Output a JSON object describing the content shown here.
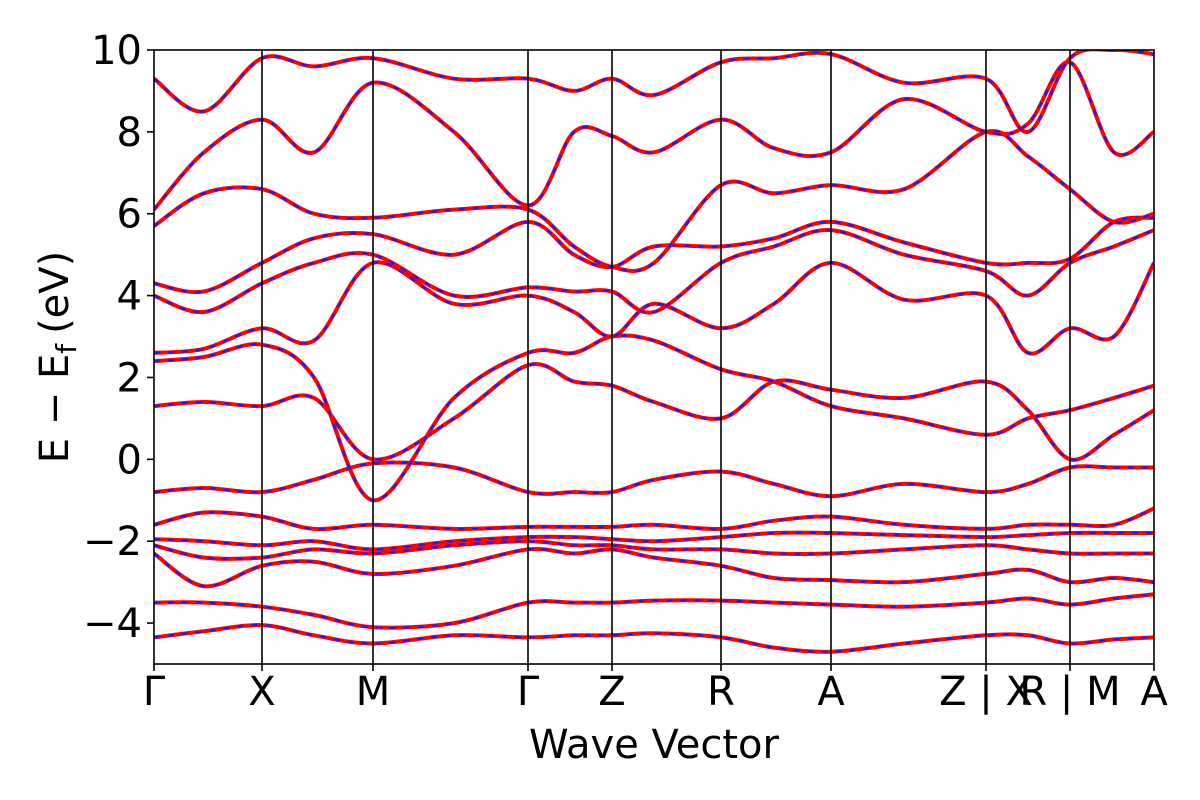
{
  "chart_data": {
    "type": "line",
    "title": "",
    "xlabel": "Wave Vector",
    "ylabel": "E − E",
    "ylabel_sub": "f",
    "ylabel_unit": "(eV)",
    "ylim": [
      -5,
      10
    ],
    "yticks": [
      {
        "value": 10,
        "label": "10"
      },
      {
        "value": 8,
        "label": "8"
      },
      {
        "value": 6,
        "label": "6"
      },
      {
        "value": 4,
        "label": "4"
      },
      {
        "value": 2,
        "label": "2"
      },
      {
        "value": 0,
        "label": "0"
      },
      {
        "value": -2,
        "label": "−2"
      },
      {
        "value": -4,
        "label": "−4"
      }
    ],
    "kpath": [
      {
        "label": "Γ",
        "pos": 0.0
      },
      {
        "label": "X",
        "pos": 0.108
      },
      {
        "label": "M",
        "pos": 0.219
      },
      {
        "label": "Γ",
        "pos": 0.374
      },
      {
        "label": "Z",
        "pos": 0.458
      },
      {
        "label": "R",
        "pos": 0.567
      },
      {
        "label": "A",
        "pos": 0.677
      },
      {
        "label": "Z | X",
        "pos": 0.832
      },
      {
        "label": "R | M",
        "pos": 0.916
      },
      {
        "label": "A",
        "pos": 1.0
      }
    ],
    "grid": false,
    "colors": {
      "band_solid": "#ff0000",
      "band_dashed": "#1a1aff"
    },
    "bands": [
      [
        [
          0,
          -4.35
        ],
        [
          0.05,
          -4.2
        ],
        [
          0.108,
          -4.05
        ],
        [
          0.16,
          -4.3
        ],
        [
          0.219,
          -4.5
        ],
        [
          0.3,
          -4.3
        ],
        [
          0.374,
          -4.35
        ],
        [
          0.42,
          -4.3
        ],
        [
          0.458,
          -4.3
        ],
        [
          0.5,
          -4.25
        ],
        [
          0.567,
          -4.35
        ],
        [
          0.62,
          -4.6
        ],
        [
          0.677,
          -4.7
        ],
        [
          0.75,
          -4.5
        ],
        [
          0.832,
          -4.3
        ],
        [
          0.874,
          -4.3
        ],
        [
          0.916,
          -4.5
        ],
        [
          0.96,
          -4.4
        ],
        [
          1.0,
          -4.35
        ]
      ],
      [
        [
          0,
          -3.5
        ],
        [
          0.05,
          -3.5
        ],
        [
          0.108,
          -3.6
        ],
        [
          0.16,
          -3.8
        ],
        [
          0.219,
          -4.1
        ],
        [
          0.3,
          -4.0
        ],
        [
          0.374,
          -3.5
        ],
        [
          0.42,
          -3.5
        ],
        [
          0.458,
          -3.5
        ],
        [
          0.5,
          -3.45
        ],
        [
          0.567,
          -3.45
        ],
        [
          0.62,
          -3.5
        ],
        [
          0.677,
          -3.55
        ],
        [
          0.75,
          -3.6
        ],
        [
          0.832,
          -3.5
        ],
        [
          0.874,
          -3.4
        ],
        [
          0.916,
          -3.55
        ],
        [
          0.96,
          -3.4
        ],
        [
          1.0,
          -3.3
        ]
      ],
      [
        [
          0,
          -2.3
        ],
        [
          0.05,
          -3.1
        ],
        [
          0.108,
          -2.6
        ],
        [
          0.16,
          -2.5
        ],
        [
          0.219,
          -2.8
        ],
        [
          0.3,
          -2.6
        ],
        [
          0.374,
          -2.2
        ],
        [
          0.42,
          -2.3
        ],
        [
          0.458,
          -2.2
        ],
        [
          0.5,
          -2.4
        ],
        [
          0.567,
          -2.6
        ],
        [
          0.62,
          -2.9
        ],
        [
          0.677,
          -2.95
        ],
        [
          0.75,
          -3.0
        ],
        [
          0.832,
          -2.8
        ],
        [
          0.874,
          -2.7
        ],
        [
          0.916,
          -3.0
        ],
        [
          0.96,
          -2.9
        ],
        [
          1.0,
          -3.0
        ]
      ],
      [
        [
          0,
          -2.1
        ],
        [
          0.05,
          -2.4
        ],
        [
          0.108,
          -2.4
        ],
        [
          0.16,
          -2.2
        ],
        [
          0.219,
          -2.3
        ],
        [
          0.3,
          -2.1
        ],
        [
          0.374,
          -2.0
        ],
        [
          0.42,
          -2.1
        ],
        [
          0.458,
          -2.1
        ],
        [
          0.5,
          -2.2
        ],
        [
          0.567,
          -2.2
        ],
        [
          0.62,
          -2.3
        ],
        [
          0.677,
          -2.3
        ],
        [
          0.75,
          -2.2
        ],
        [
          0.832,
          -2.1
        ],
        [
          0.874,
          -2.2
        ],
        [
          0.916,
          -2.3
        ],
        [
          0.96,
          -2.3
        ],
        [
          1.0,
          -2.3
        ]
      ],
      [
        [
          0,
          -1.95
        ],
        [
          0.05,
          -2.0
        ],
        [
          0.108,
          -2.1
        ],
        [
          0.16,
          -2.0
        ],
        [
          0.219,
          -2.2
        ],
        [
          0.3,
          -2.0
        ],
        [
          0.374,
          -1.9
        ],
        [
          0.42,
          -1.9
        ],
        [
          0.458,
          -1.95
        ],
        [
          0.5,
          -2.0
        ],
        [
          0.567,
          -1.9
        ],
        [
          0.62,
          -1.8
        ],
        [
          0.677,
          -1.8
        ],
        [
          0.75,
          -1.85
        ],
        [
          0.832,
          -1.9
        ],
        [
          0.874,
          -1.85
        ],
        [
          0.916,
          -1.8
        ],
        [
          0.96,
          -1.8
        ],
        [
          1.0,
          -1.8
        ]
      ],
      [
        [
          0,
          -1.6
        ],
        [
          0.05,
          -1.3
        ],
        [
          0.108,
          -1.4
        ],
        [
          0.16,
          -1.7
        ],
        [
          0.219,
          -1.6
        ],
        [
          0.3,
          -1.7
        ],
        [
          0.374,
          -1.65
        ],
        [
          0.42,
          -1.65
        ],
        [
          0.458,
          -1.65
        ],
        [
          0.5,
          -1.6
        ],
        [
          0.567,
          -1.7
        ],
        [
          0.62,
          -1.5
        ],
        [
          0.677,
          -1.4
        ],
        [
          0.75,
          -1.6
        ],
        [
          0.832,
          -1.7
        ],
        [
          0.874,
          -1.6
        ],
        [
          0.916,
          -1.6
        ],
        [
          0.96,
          -1.6
        ],
        [
          1.0,
          -1.2
        ]
      ],
      [
        [
          0,
          -0.8
        ],
        [
          0.05,
          -0.7
        ],
        [
          0.108,
          -0.8
        ],
        [
          0.16,
          -0.5
        ],
        [
          0.219,
          -0.1
        ],
        [
          0.3,
          -0.2
        ],
        [
          0.374,
          -0.8
        ],
        [
          0.42,
          -0.8
        ],
        [
          0.458,
          -0.8
        ],
        [
          0.5,
          -0.5
        ],
        [
          0.567,
          -0.3
        ],
        [
          0.62,
          -0.6
        ],
        [
          0.677,
          -0.9
        ],
        [
          0.75,
          -0.6
        ],
        [
          0.832,
          -0.8
        ],
        [
          0.874,
          -0.6
        ],
        [
          0.916,
          -0.2
        ],
        [
          0.96,
          -0.2
        ],
        [
          1.0,
          -0.2
        ]
      ],
      [
        [
          0,
          1.3
        ],
        [
          0.05,
          1.4
        ],
        [
          0.108,
          1.3
        ],
        [
          0.16,
          1.5
        ],
        [
          0.219,
          0.0
        ],
        [
          0.3,
          1.0
        ],
        [
          0.374,
          2.3
        ],
        [
          0.42,
          1.9
        ],
        [
          0.458,
          1.8
        ],
        [
          0.5,
          1.4
        ],
        [
          0.567,
          1.0
        ],
        [
          0.62,
          1.9
        ],
        [
          0.677,
          1.7
        ],
        [
          0.75,
          1.5
        ],
        [
          0.832,
          1.9
        ],
        [
          0.874,
          1.2
        ],
        [
          0.916,
          0.0
        ],
        [
          0.96,
          0.6
        ],
        [
          1.0,
          1.2
        ]
      ],
      [
        [
          0,
          2.4
        ],
        [
          0.05,
          2.5
        ],
        [
          0.108,
          2.8
        ],
        [
          0.16,
          2.0
        ],
        [
          0.219,
          -1.0
        ],
        [
          0.3,
          1.5
        ],
        [
          0.374,
          2.6
        ],
        [
          0.42,
          2.6
        ],
        [
          0.458,
          3.0
        ],
        [
          0.5,
          2.9
        ],
        [
          0.567,
          2.2
        ],
        [
          0.62,
          1.9
        ],
        [
          0.677,
          1.3
        ],
        [
          0.75,
          1.0
        ],
        [
          0.832,
          0.6
        ],
        [
          0.874,
          1.0
        ],
        [
          0.916,
          1.2
        ],
        [
          0.96,
          1.5
        ],
        [
          1.0,
          1.8
        ]
      ],
      [
        [
          0,
          2.6
        ],
        [
          0.05,
          2.7
        ],
        [
          0.108,
          3.2
        ],
        [
          0.16,
          2.9
        ],
        [
          0.219,
          4.8
        ],
        [
          0.3,
          3.8
        ],
        [
          0.374,
          4.0
        ],
        [
          0.42,
          3.6
        ],
        [
          0.458,
          3.0
        ],
        [
          0.5,
          3.8
        ],
        [
          0.567,
          3.2
        ],
        [
          0.62,
          3.8
        ],
        [
          0.677,
          4.8
        ],
        [
          0.75,
          3.9
        ],
        [
          0.832,
          4.0
        ],
        [
          0.874,
          2.6
        ],
        [
          0.916,
          3.2
        ],
        [
          0.96,
          3.0
        ],
        [
          1.0,
          4.8
        ]
      ],
      [
        [
          0,
          4.0
        ],
        [
          0.05,
          3.6
        ],
        [
          0.108,
          4.3
        ],
        [
          0.16,
          4.8
        ],
        [
          0.219,
          5.0
        ],
        [
          0.3,
          4.0
        ],
        [
          0.374,
          4.2
        ],
        [
          0.42,
          4.1
        ],
        [
          0.458,
          4.1
        ],
        [
          0.5,
          3.6
        ],
        [
          0.567,
          4.8
        ],
        [
          0.62,
          5.2
        ],
        [
          0.677,
          5.6
        ],
        [
          0.75,
          5.0
        ],
        [
          0.832,
          4.6
        ],
        [
          0.874,
          4.0
        ],
        [
          0.916,
          4.8
        ],
        [
          0.96,
          5.2
        ],
        [
          1.0,
          5.6
        ]
      ],
      [
        [
          0,
          4.3
        ],
        [
          0.05,
          4.1
        ],
        [
          0.108,
          4.8
        ],
        [
          0.16,
          5.4
        ],
        [
          0.219,
          5.5
        ],
        [
          0.3,
          5.0
        ],
        [
          0.374,
          5.8
        ],
        [
          0.42,
          5.0
        ],
        [
          0.458,
          4.7
        ],
        [
          0.5,
          5.2
        ],
        [
          0.567,
          5.2
        ],
        [
          0.62,
          5.4
        ],
        [
          0.677,
          5.8
        ],
        [
          0.75,
          5.3
        ],
        [
          0.832,
          4.8
        ],
        [
          0.874,
          4.8
        ],
        [
          0.916,
          4.9
        ],
        [
          0.96,
          5.8
        ],
        [
          1.0,
          5.9
        ]
      ],
      [
        [
          0,
          5.7
        ],
        [
          0.05,
          6.5
        ],
        [
          0.108,
          6.6
        ],
        [
          0.16,
          6.0
        ],
        [
          0.219,
          5.9
        ],
        [
          0.3,
          6.1
        ],
        [
          0.374,
          6.1
        ],
        [
          0.42,
          5.2
        ],
        [
          0.458,
          4.7
        ],
        [
          0.5,
          4.8
        ],
        [
          0.567,
          6.7
        ],
        [
          0.62,
          6.5
        ],
        [
          0.677,
          6.7
        ],
        [
          0.75,
          6.6
        ],
        [
          0.832,
          8.0
        ],
        [
          0.874,
          7.4
        ],
        [
          0.916,
          6.6
        ],
        [
          0.96,
          5.8
        ],
        [
          1.0,
          6.0
        ]
      ],
      [
        [
          0,
          6.1
        ],
        [
          0.05,
          7.5
        ],
        [
          0.108,
          8.3
        ],
        [
          0.16,
          7.5
        ],
        [
          0.219,
          9.2
        ],
        [
          0.3,
          8.0
        ],
        [
          0.374,
          6.2
        ],
        [
          0.42,
          8.0
        ],
        [
          0.458,
          7.9
        ],
        [
          0.5,
          7.5
        ],
        [
          0.567,
          8.3
        ],
        [
          0.62,
          7.6
        ],
        [
          0.677,
          7.5
        ],
        [
          0.75,
          8.8
        ],
        [
          0.832,
          8.0
        ],
        [
          0.874,
          8.2
        ],
        [
          0.916,
          9.7
        ],
        [
          0.96,
          7.5
        ],
        [
          1.0,
          8.0
        ]
      ],
      [
        [
          0,
          9.3
        ],
        [
          0.05,
          8.5
        ],
        [
          0.108,
          9.8
        ],
        [
          0.16,
          9.6
        ],
        [
          0.219,
          9.8
        ],
        [
          0.3,
          9.3
        ],
        [
          0.374,
          9.3
        ],
        [
          0.42,
          9.0
        ],
        [
          0.458,
          9.3
        ],
        [
          0.5,
          8.9
        ],
        [
          0.567,
          9.7
        ],
        [
          0.62,
          9.8
        ],
        [
          0.677,
          9.9
        ],
        [
          0.75,
          9.2
        ],
        [
          0.832,
          9.3
        ],
        [
          0.874,
          8.0
        ],
        [
          0.916,
          9.8
        ],
        [
          0.96,
          10.0
        ],
        [
          1.0,
          9.9
        ]
      ]
    ]
  }
}
